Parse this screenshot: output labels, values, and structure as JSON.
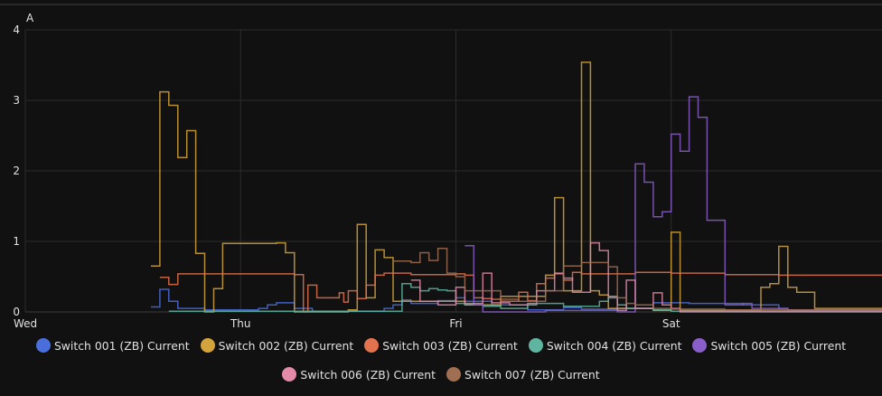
{
  "chart_data": {
    "type": "line",
    "style": "step",
    "unit_label": "A",
    "ylim": [
      0,
      4
    ],
    "yticks": [
      0,
      1,
      2,
      3,
      4
    ],
    "x_range": [
      "Wed 00:00",
      "Sat 23:00"
    ],
    "x_unit": "hours since Wed 00:00",
    "xlim": [
      0,
      95.5
    ],
    "xticks": [
      {
        "label": "Wed",
        "x": 0
      },
      {
        "label": "Thu",
        "x": 24
      },
      {
        "label": "Fri",
        "x": 48
      },
      {
        "label": "Sat",
        "x": 72
      }
    ],
    "grid": true,
    "legend_position": "bottom",
    "series": [
      {
        "name": "Switch 001 (ZB) Current",
        "color": "#4a6fdc",
        "points": [
          [
            14,
            0.07
          ],
          [
            15,
            0.32
          ],
          [
            16,
            0.15
          ],
          [
            17,
            0.05
          ],
          [
            20,
            0.03
          ],
          [
            26,
            0.05
          ],
          [
            27,
            0.1
          ],
          [
            28,
            0.13
          ],
          [
            30,
            0.05
          ],
          [
            32,
            0.01
          ],
          [
            40,
            0.05
          ],
          [
            41,
            0.1
          ],
          [
            42,
            0.17
          ],
          [
            43,
            0.12
          ],
          [
            46,
            0.16
          ],
          [
            48,
            0.2
          ],
          [
            49,
            0.15
          ],
          [
            52,
            0.1
          ],
          [
            56,
            0.03
          ],
          [
            60,
            0.06
          ],
          [
            62,
            0.04
          ],
          [
            66,
            0.05
          ],
          [
            70,
            0.13
          ],
          [
            74,
            0.12
          ],
          [
            80,
            0.1
          ],
          [
            84,
            0.05
          ],
          [
            85,
            0.02
          ],
          [
            95.5,
            0.02
          ]
        ]
      },
      {
        "name": "Switch 002 (ZB) Current",
        "color": "#d4a43c",
        "points": [
          [
            14,
            0.65
          ],
          [
            15,
            3.12
          ],
          [
            16,
            2.93
          ],
          [
            17,
            2.19
          ],
          [
            18,
            2.57
          ],
          [
            19,
            0.83
          ],
          [
            20,
            0
          ],
          [
            21,
            0.33
          ],
          [
            22,
            0.97
          ],
          [
            28,
            0.98
          ],
          [
            29,
            0.84
          ],
          [
            30,
            0
          ],
          [
            36,
            0.03
          ],
          [
            37,
            1.24
          ],
          [
            38,
            0.2
          ],
          [
            39,
            0.88
          ],
          [
            40,
            0.77
          ],
          [
            41,
            0.15
          ],
          [
            49,
            0.1
          ],
          [
            53,
            0.22
          ],
          [
            58,
            0.52
          ],
          [
            59,
            1.62
          ],
          [
            60,
            0.3
          ],
          [
            62,
            3.54
          ],
          [
            63,
            0.3
          ],
          [
            64,
            0.24
          ],
          [
            65,
            0.05
          ],
          [
            70,
            0.02
          ],
          [
            72,
            1.13
          ],
          [
            73,
            0.02
          ],
          [
            82,
            0.35
          ],
          [
            83,
            0.4
          ],
          [
            84,
            0.93
          ],
          [
            85,
            0.35
          ],
          [
            86,
            0.28
          ],
          [
            88,
            0.05
          ],
          [
            95.5,
            0.05
          ]
        ]
      },
      {
        "name": "Switch 003 (ZB) Current",
        "color": "#e3724e",
        "points": [
          [
            15,
            0.49
          ],
          [
            16,
            0.39
          ],
          [
            17,
            0.54
          ],
          [
            30,
            0.53
          ],
          [
            31,
            0
          ],
          [
            31.5,
            0.38
          ],
          [
            32.5,
            0.2
          ],
          [
            35,
            0.27
          ],
          [
            35.5,
            0.14
          ],
          [
            36,
            0.3
          ],
          [
            37,
            0.19
          ],
          [
            38,
            0.38
          ],
          [
            39,
            0.52
          ],
          [
            40,
            0.55
          ],
          [
            43,
            0.53
          ],
          [
            48,
            0.54
          ],
          [
            49,
            0.52
          ],
          [
            50,
            0.2
          ],
          [
            51,
            0.19
          ],
          [
            52,
            0.18
          ],
          [
            53,
            0.15
          ],
          [
            55,
            0.28
          ],
          [
            56,
            0.16
          ],
          [
            57,
            0.4
          ],
          [
            58,
            0.48
          ],
          [
            59,
            0.54
          ],
          [
            60,
            0.45
          ],
          [
            61,
            0.56
          ],
          [
            62,
            0.54
          ],
          [
            68,
            0.56
          ],
          [
            72,
            0.55
          ],
          [
            78,
            0.53
          ],
          [
            84,
            0.52
          ],
          [
            95.5,
            0.52
          ]
        ]
      },
      {
        "name": "Switch 004 (ZB) Current",
        "color": "#5fb5a0",
        "points": [
          [
            16,
            0.01
          ],
          [
            42,
            0.4
          ],
          [
            43,
            0.35
          ],
          [
            44,
            0.3
          ],
          [
            45,
            0.33
          ],
          [
            46,
            0.31
          ],
          [
            47,
            0.3
          ],
          [
            48,
            0.12
          ],
          [
            49,
            0.1
          ],
          [
            51,
            0.08
          ],
          [
            53,
            0.05
          ],
          [
            56,
            0.1
          ],
          [
            57,
            0.12
          ],
          [
            60,
            0.08
          ],
          [
            64,
            0.15
          ],
          [
            65,
            0.2
          ],
          [
            66,
            0.1
          ],
          [
            67,
            0.05
          ],
          [
            70,
            0.03
          ],
          [
            72,
            0.01
          ],
          [
            95.5,
            0.01
          ]
        ]
      },
      {
        "name": "Switch 005 (ZB) Current",
        "color": "#8a5ec8",
        "points": [
          [
            49,
            0.94
          ],
          [
            50,
            0.1
          ],
          [
            51,
            0
          ],
          [
            58,
            0.02
          ],
          [
            66,
            0
          ],
          [
            68,
            2.1
          ],
          [
            69,
            1.84
          ],
          [
            70,
            1.35
          ],
          [
            71,
            1.42
          ],
          [
            72,
            2.52
          ],
          [
            73,
            2.28
          ],
          [
            74,
            3.05
          ],
          [
            75,
            2.76
          ],
          [
            76,
            1.3
          ],
          [
            78,
            0.1
          ],
          [
            80,
            0.12
          ],
          [
            81,
            0.05
          ],
          [
            85,
            0.03
          ],
          [
            95.5,
            0.03
          ]
        ]
      },
      {
        "name": "Switch 006 (ZB) Current",
        "color": "#e28aa8",
        "points": [
          [
            43,
            0.45
          ],
          [
            44,
            0.15
          ],
          [
            46,
            0.1
          ],
          [
            48,
            0.35
          ],
          [
            49,
            0.12
          ],
          [
            51,
            0.55
          ],
          [
            52,
            0.13
          ],
          [
            54,
            0.1
          ],
          [
            56,
            0.12
          ],
          [
            57,
            0.3
          ],
          [
            59,
            0.55
          ],
          [
            60,
            0.48
          ],
          [
            61,
            0.28
          ],
          [
            63,
            0.98
          ],
          [
            64,
            0.87
          ],
          [
            65,
            0.22
          ],
          [
            66,
            0.02
          ],
          [
            67,
            0.45
          ],
          [
            68,
            0.05
          ],
          [
            70,
            0.27
          ],
          [
            71,
            0.1
          ],
          [
            72,
            0.05
          ],
          [
            73,
            0
          ],
          [
            95.5,
            0
          ]
        ]
      },
      {
        "name": "Switch 007 (ZB) Current",
        "color": "#a06f52",
        "points": [
          [
            41,
            0.72
          ],
          [
            43,
            0.7
          ],
          [
            44,
            0.84
          ],
          [
            45,
            0.73
          ],
          [
            46,
            0.9
          ],
          [
            47,
            0.55
          ],
          [
            48,
            0.5
          ],
          [
            49,
            0.3
          ],
          [
            53,
            0.18
          ],
          [
            55,
            0.15
          ],
          [
            58,
            0.3
          ],
          [
            60,
            0.65
          ],
          [
            62,
            0.7
          ],
          [
            65,
            0.64
          ],
          [
            66,
            0.2
          ],
          [
            67,
            0.12
          ],
          [
            68,
            0.1
          ],
          [
            70,
            0.05
          ],
          [
            72,
            0.04
          ],
          [
            78,
            0.03
          ],
          [
            95.5,
            0.03
          ]
        ]
      }
    ]
  }
}
